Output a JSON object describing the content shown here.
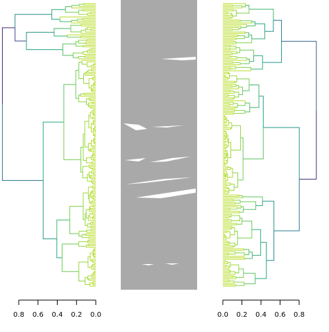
{
  "chart_data": [
    {
      "type": "dendrogram",
      "xlim": [
        0.8,
        0
      ],
      "xticks": [
        0.8,
        0.6,
        0.4,
        0.2,
        {
          "value": 0,
          "label": "0.0"
        }
      ]
    },
    {
      "type": "dendrogram",
      "xlim": [
        0,
        0.8
      ],
      "xticks": [
        {
          "value": 0,
          "label": "0.0"
        },
        0.2,
        0.4,
        0.6,
        0.8
      ]
    }
  ]
}
